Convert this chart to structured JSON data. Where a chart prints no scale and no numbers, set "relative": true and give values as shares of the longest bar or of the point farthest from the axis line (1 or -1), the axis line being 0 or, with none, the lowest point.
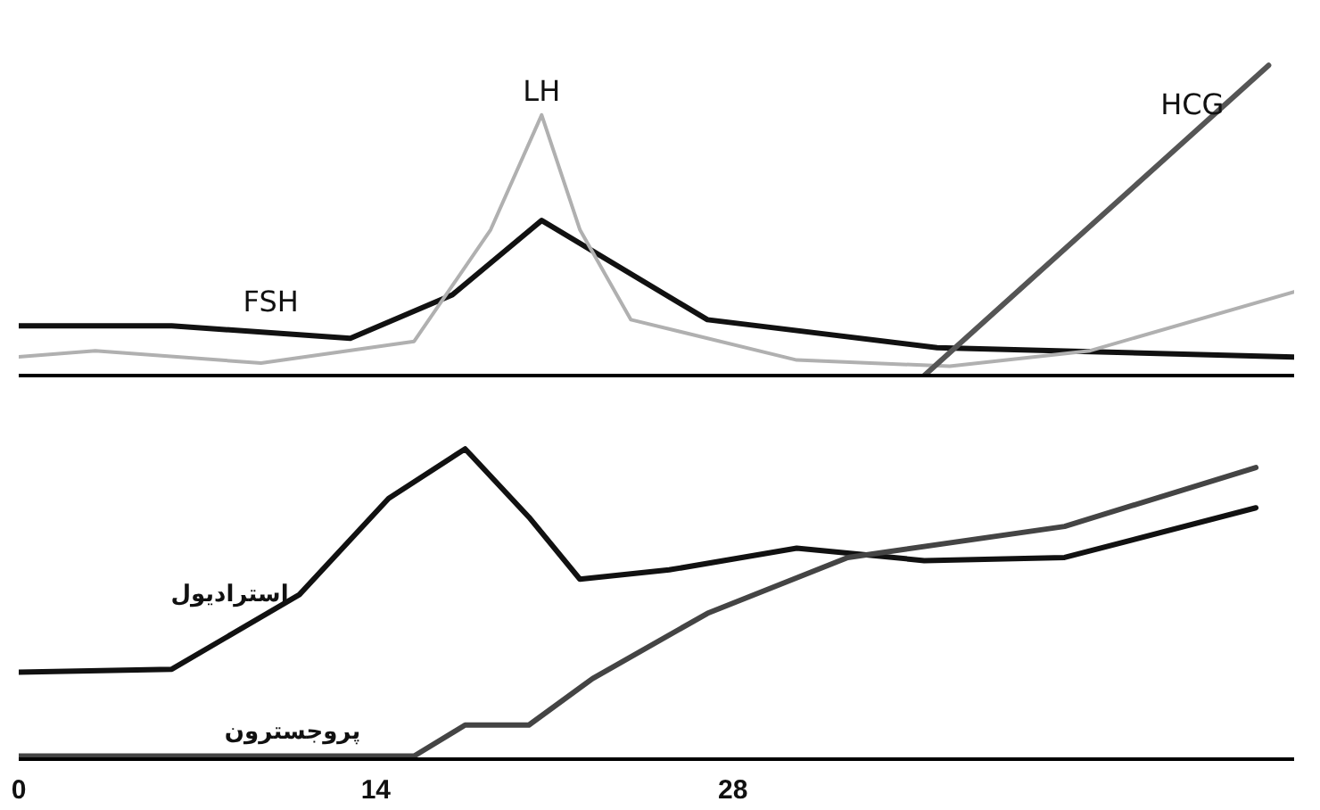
{
  "chart_data": [
    {
      "type": "line",
      "relative": true,
      "xlim": [
        0,
        50
      ],
      "tick_labels": false,
      "series": [
        {
          "name": "FSH",
          "color": "#111111",
          "x": [
            0,
            6,
            13,
            17,
            20.5,
            27,
            36,
            50
          ],
          "values": [
            0.16,
            0.16,
            0.12,
            0.26,
            0.5,
            0.18,
            0.09,
            0.06
          ]
        },
        {
          "name": "LH",
          "color": "#b0b0b0",
          "x": [
            0,
            3,
            9.5,
            15.5,
            18.5,
            20.5,
            22,
            24,
            30.5,
            36.5,
            42,
            50
          ],
          "values": [
            0.06,
            0.08,
            0.04,
            0.11,
            0.47,
            0.84,
            0.47,
            0.18,
            0.05,
            0.03,
            0.08,
            0.27
          ]
        },
        {
          "name": "HCG",
          "color": "#555555",
          "x": [
            35.5,
            49
          ],
          "values": [
            0,
            1
          ]
        }
      ]
    },
    {
      "type": "line",
      "relative": true,
      "xlim": [
        0,
        50
      ],
      "xticks": [
        0,
        14,
        28
      ],
      "tick_labels": "x",
      "series": [
        {
          "name": "استرادیول",
          "color": "#111111",
          "x": [
            0,
            6,
            11,
            14.5,
            17.5,
            20,
            22,
            25.5,
            30.5,
            35.5,
            41,
            48.5
          ],
          "values": [
            0.28,
            0.29,
            0.53,
            0.84,
            1,
            0.78,
            0.58,
            0.61,
            0.68,
            0.64,
            0.65,
            0.81
          ]
        },
        {
          "name": "پروجسترون",
          "color": "#444444",
          "x": [
            0,
            15.5,
            17.5,
            20,
            22.5,
            27,
            32.5,
            41,
            48.5
          ],
          "values": [
            0.01,
            0.01,
            0.11,
            0.11,
            0.26,
            0.47,
            0.65,
            0.75,
            0.94
          ]
        }
      ]
    }
  ]
}
